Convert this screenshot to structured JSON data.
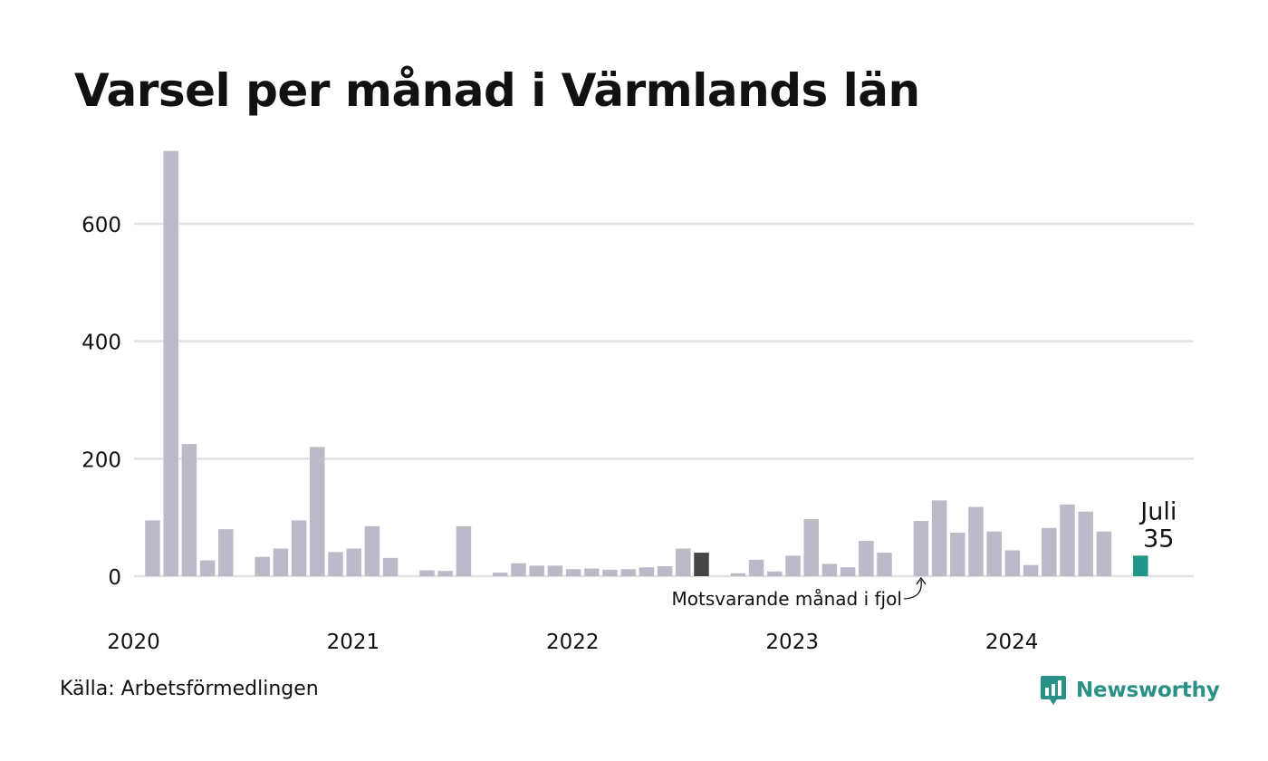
{
  "title": "Varsel per månad i Värmlands län",
  "source": "Källa: Arbetsförmedlingen",
  "brand": {
    "name": "Newsworthy",
    "icon": "newsworthy-logo-icon"
  },
  "colors": {
    "bar": "#bcbac8",
    "highlight": "#444444",
    "current": "#1f9688",
    "grid": "#e2e2e2",
    "brand": "#2a9187"
  },
  "chart_data": {
    "type": "bar",
    "grid": true,
    "ylim": [
      0,
      700
    ],
    "yticks": [
      0,
      200,
      400,
      600
    ],
    "xtick_labels": [
      "2020",
      "2021",
      "2022",
      "2023",
      "2024"
    ],
    "x": [
      "2020-01",
      "2020-02",
      "2020-03",
      "2020-04",
      "2020-05",
      "2020-06",
      "2020-07",
      "2020-08",
      "2020-09",
      "2020-10",
      "2020-11",
      "2020-12",
      "2021-01",
      "2021-02",
      "2021-03",
      "2021-04",
      "2021-05",
      "2021-06",
      "2021-07",
      "2021-08",
      "2021-09",
      "2021-10",
      "2021-11",
      "2021-12",
      "2022-01",
      "2022-02",
      "2022-03",
      "2022-04",
      "2022-05",
      "2022-06",
      "2022-07",
      "2022-08",
      "2022-09",
      "2022-10",
      "2022-11",
      "2022-12",
      "2023-01",
      "2023-02",
      "2023-03",
      "2023-04",
      "2023-05",
      "2023-06",
      "2023-07",
      "2023-08",
      "2023-09",
      "2023-10",
      "2023-11",
      "2023-12",
      "2024-01",
      "2024-02",
      "2024-03",
      "2024-04",
      "2024-05",
      "2024-06",
      "2024-07"
    ],
    "values": [
      95,
      724,
      225,
      27,
      80,
      0,
      33,
      47,
      95,
      220,
      41,
      47,
      85,
      31,
      0,
      10,
      9,
      85,
      0,
      6,
      22,
      18,
      18,
      12,
      13,
      11,
      12,
      15,
      17,
      47,
      40,
      0,
      5,
      28,
      8,
      35,
      97,
      21,
      15,
      60,
      40,
      0,
      94,
      129,
      74,
      118,
      76,
      44,
      19,
      82,
      122,
      110,
      76,
      0,
      35
    ],
    "highlighted_months": [
      "2021-07",
      "2022-07"
    ],
    "current_month": "2024-07",
    "current_label": {
      "month": "Juli",
      "value": "35"
    },
    "annotation": {
      "text": "Motsvarande månad i fjol",
      "month": "2023-07"
    }
  }
}
